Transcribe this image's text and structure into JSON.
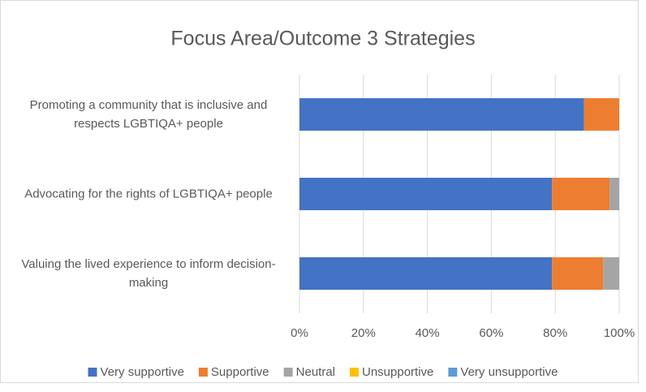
{
  "chart_data": {
    "type": "stacked-bar-horizontal",
    "title": "Focus Area/Outcome 3 Strategies",
    "categories": [
      "Promoting a community that is inclusive and respects LGBTIQA+ people",
      "Advocating for the rights of LGBTIQA+ people",
      "Valuing the lived experience to inform decision-making"
    ],
    "series": [
      {
        "name": "Very supportive",
        "color": "#4472c4",
        "values": [
          89,
          79,
          79
        ]
      },
      {
        "name": "Supportive",
        "color": "#ed7d31",
        "values": [
          11,
          18,
          16
        ]
      },
      {
        "name": "Neutral",
        "color": "#a5a5a5",
        "values": [
          0,
          3,
          5
        ]
      },
      {
        "name": "Unsupportive",
        "color": "#ffc000",
        "values": [
          0,
          0,
          0
        ]
      },
      {
        "name": "Very unsupportive",
        "color": "#5b9bd5",
        "values": [
          0,
          0,
          0
        ]
      }
    ],
    "xlim": [
      0,
      100
    ],
    "xticks": [
      {
        "value": 0,
        "label": "0%"
      },
      {
        "value": 20,
        "label": "20%"
      },
      {
        "value": 40,
        "label": "40%"
      },
      {
        "value": 60,
        "label": "60%"
      },
      {
        "value": 80,
        "label": "80%"
      },
      {
        "value": 100,
        "label": "100%"
      }
    ],
    "grid": true,
    "legend": "bottom"
  }
}
